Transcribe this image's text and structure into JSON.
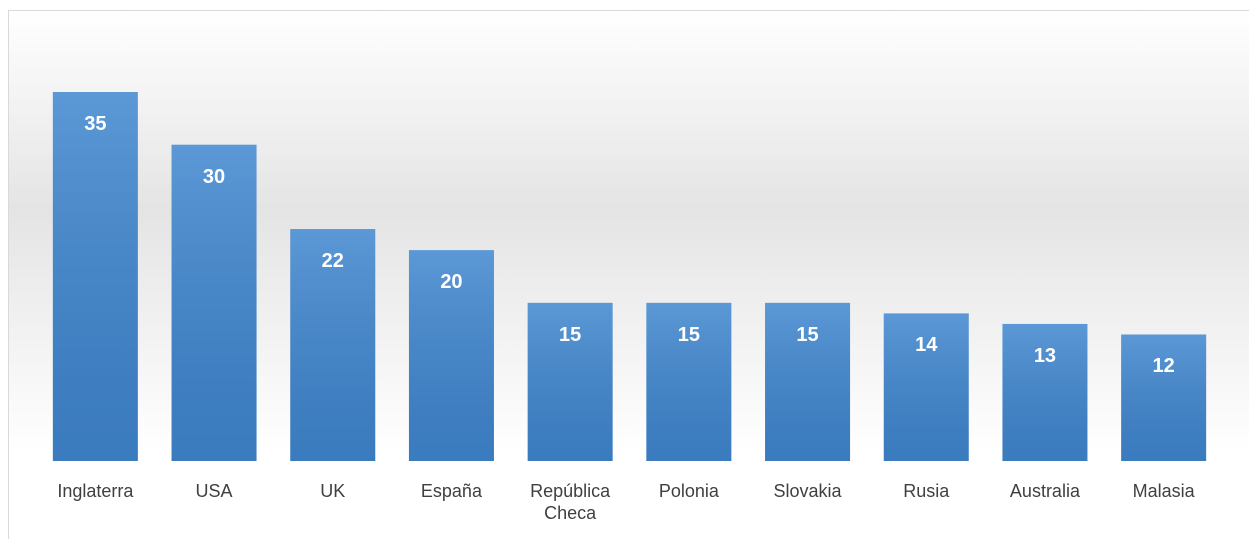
{
  "chart_data": {
    "type": "bar",
    "categories": [
      "Inglaterra",
      "USA",
      "UK",
      "España",
      "República Checa",
      "Polonia",
      "Slovakia",
      "Rusia",
      "Australia",
      "Malasia"
    ],
    "values": [
      35,
      30,
      22,
      20,
      15,
      15,
      15,
      14,
      13,
      12
    ],
    "color": "#3f86cf"
  }
}
